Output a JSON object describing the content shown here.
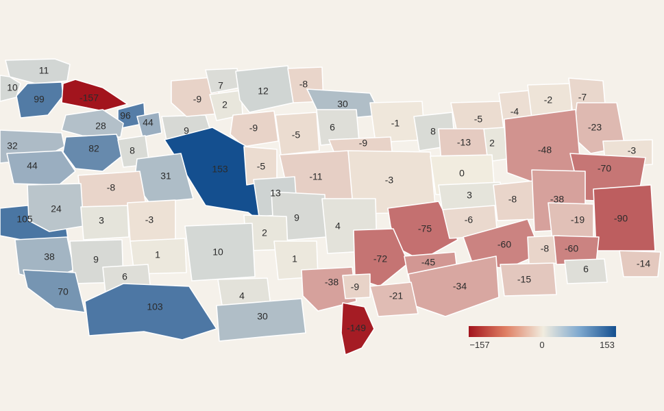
{
  "map": {
    "colors": {
      "background": "#f5f1ea",
      "min": "#a2141d",
      "mid": "#f1ecdf",
      "max": "#144f8f",
      "outline": "#ffffff"
    },
    "scale": {
      "min": -157,
      "mid": 0,
      "max": 153
    },
    "legend": {
      "min_label": "−157",
      "mid_label": "0",
      "max_label": "153"
    },
    "regions": [
      {
        "label": "11",
        "value": 11
      },
      {
        "label": "10",
        "value": 10
      },
      {
        "label": "99",
        "value": 99
      },
      {
        "label": "-157",
        "value": -157
      },
      {
        "label": "96",
        "value": 96
      },
      {
        "label": "28",
        "value": 28
      },
      {
        "label": "44",
        "value": 44
      },
      {
        "label": "32",
        "value": 32
      },
      {
        "label": "82",
        "value": 82
      },
      {
        "label": "8",
        "value": 8
      },
      {
        "label": "44",
        "value": 44
      },
      {
        "label": "9",
        "value": 9
      },
      {
        "label": "-9",
        "value": -9
      },
      {
        "label": "7",
        "value": 7
      },
      {
        "label": "2",
        "value": 2
      },
      {
        "label": "12",
        "value": 12
      },
      {
        "label": "-8",
        "value": -8
      },
      {
        "label": "30",
        "value": 30
      },
      {
        "label": "-9",
        "value": -9
      },
      {
        "label": "-5",
        "value": -5
      },
      {
        "label": "6",
        "value": 6
      },
      {
        "label": "-1",
        "value": -1
      },
      {
        "label": "8",
        "value": 8
      },
      {
        "label": "-5",
        "value": -5
      },
      {
        "label": "-4",
        "value": -4
      },
      {
        "label": "-2",
        "value": -2
      },
      {
        "label": "-7",
        "value": -7
      },
      {
        "label": "-23",
        "value": -23
      },
      {
        "label": "153",
        "value": 153
      },
      {
        "label": "-5",
        "value": -5
      },
      {
        "label": "31",
        "value": 31
      },
      {
        "label": "-9",
        "value": -9
      },
      {
        "label": "-13",
        "value": -13
      },
      {
        "label": "2",
        "value": 2
      },
      {
        "label": "-48",
        "value": -48
      },
      {
        "label": "-3",
        "value": -3
      },
      {
        "label": "-11",
        "value": -11
      },
      {
        "label": "-3",
        "value": -3
      },
      {
        "label": "0",
        "value": 0
      },
      {
        "label": "-70",
        "value": -70
      },
      {
        "label": "-8",
        "value": -8
      },
      {
        "label": "13",
        "value": 13
      },
      {
        "label": "3",
        "value": 3
      },
      {
        "label": "-8",
        "value": -8
      },
      {
        "label": "-38",
        "value": -38
      },
      {
        "label": "-90",
        "value": -90
      },
      {
        "label": "105",
        "value": 105
      },
      {
        "label": "24",
        "value": 24
      },
      {
        "label": "3",
        "value": 3
      },
      {
        "label": "-3",
        "value": -3
      },
      {
        "label": "9",
        "value": 9
      },
      {
        "label": "4",
        "value": 4
      },
      {
        "label": "-75",
        "value": -75
      },
      {
        "label": "-6",
        "value": -6
      },
      {
        "label": "-19",
        "value": -19
      },
      {
        "label": "2",
        "value": 2
      },
      {
        "label": "-60",
        "value": -60
      },
      {
        "label": "-8",
        "value": -8
      },
      {
        "label": "-60",
        "value": -60
      },
      {
        "label": "38",
        "value": 38
      },
      {
        "label": "9",
        "value": 9
      },
      {
        "label": "1",
        "value": 1
      },
      {
        "label": "10",
        "value": 10
      },
      {
        "label": "1",
        "value": 1
      },
      {
        "label": "-72",
        "value": -72
      },
      {
        "label": "-45",
        "value": -45
      },
      {
        "label": "-14",
        "value": -14
      },
      {
        "label": "6",
        "value": 6
      },
      {
        "label": "6",
        "value": 6
      },
      {
        "label": "-38",
        "value": -38
      },
      {
        "label": "-9",
        "value": -9
      },
      {
        "label": "-34",
        "value": -34
      },
      {
        "label": "-15",
        "value": -15
      },
      {
        "label": "70",
        "value": 70
      },
      {
        "label": "103",
        "value": 103
      },
      {
        "label": "4",
        "value": 4
      },
      {
        "label": "-21",
        "value": -21
      },
      {
        "label": "30",
        "value": 30
      },
      {
        "label": "-149",
        "value": -149
      }
    ]
  }
}
